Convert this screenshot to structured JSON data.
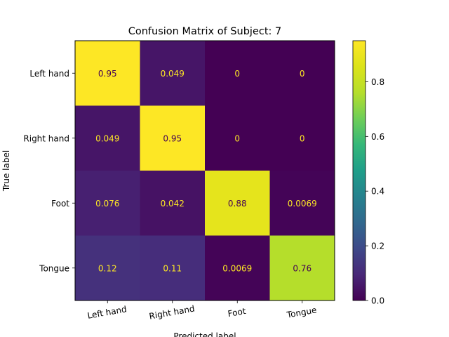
{
  "chart_data": {
    "type": "heatmap",
    "title": "Confusion Matrix of Subject: 7",
    "xlabel": "Predicted label",
    "ylabel": "True label",
    "x_categories": [
      "Left hand",
      "Right hand",
      "Foot",
      "Tongue"
    ],
    "y_categories": [
      "Left hand",
      "Right hand",
      "Foot",
      "Tongue"
    ],
    "values": [
      [
        0.95,
        0.049,
        0,
        0
      ],
      [
        0.049,
        0.95,
        0,
        0
      ],
      [
        0.076,
        0.042,
        0.88,
        0.0069
      ],
      [
        0.12,
        0.11,
        0.0069,
        0.76
      ]
    ],
    "value_labels": [
      [
        "0.95",
        "0.049",
        "0",
        "0"
      ],
      [
        "0.049",
        "0.95",
        "0",
        "0"
      ],
      [
        "0.076",
        "0.042",
        "0.88",
        "0.0069"
      ],
      [
        "0.12",
        "0.11",
        "0.0069",
        "0.76"
      ]
    ],
    "colormap": "viridis",
    "colorbar": {
      "range": [
        0.0,
        0.95
      ],
      "ticks": [
        0.0,
        0.2,
        0.4,
        0.6,
        0.8
      ],
      "tick_labels": [
        "0.0",
        "0.2",
        "0.4",
        "0.6",
        "0.8"
      ]
    },
    "text_colors": {
      "on_dark": "#fde725",
      "on_light": "#440154"
    },
    "grid": false
  }
}
